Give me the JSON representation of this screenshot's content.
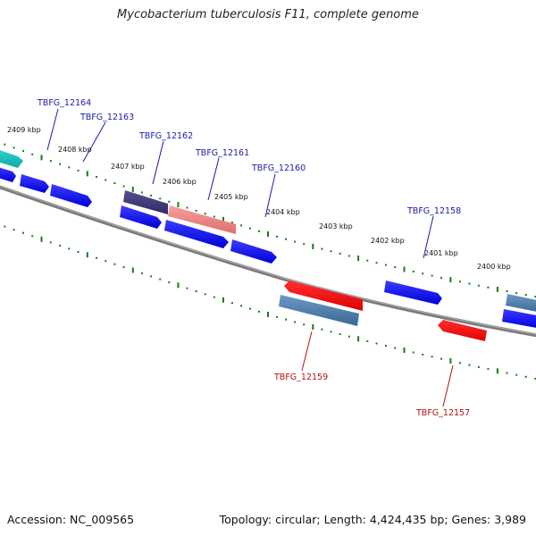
{
  "title": "Mycobacterium tuberculosis F11, complete genome",
  "footer": {
    "accession": "Accession: NC_009565",
    "summary": "Topology: circular; Length: 4,424,435 bp; Genes: 3,989"
  },
  "colors": {
    "forward_gene": "#1010f0",
    "reverse_gene": "#f01010",
    "label_forward": "#1a1aa8",
    "label_reverse": "#b81010",
    "backbone": "#777777",
    "tick": "#1a7a1a"
  },
  "ticks": [
    {
      "label": "2409 kbp"
    },
    {
      "label": "2408 kbp"
    },
    {
      "label": "2407 kbp"
    },
    {
      "label": "2406 kbp"
    },
    {
      "label": "2405 kbp"
    },
    {
      "label": "2404 kbp"
    },
    {
      "label": "2403 kbp"
    },
    {
      "label": "2402 kbp"
    },
    {
      "label": "2401 kbp"
    },
    {
      "label": "2400 kbp"
    }
  ],
  "genes": [
    {
      "name": "TBFG_12164"
    },
    {
      "name": "TBFG_12163"
    },
    {
      "name": "TBFG_12162"
    },
    {
      "name": "TBFG_12161"
    },
    {
      "name": "TBFG_12160"
    },
    {
      "name": "TBFG_12159"
    },
    {
      "name": "TBFG_12158"
    },
    {
      "name": "TBFG_12157"
    }
  ]
}
